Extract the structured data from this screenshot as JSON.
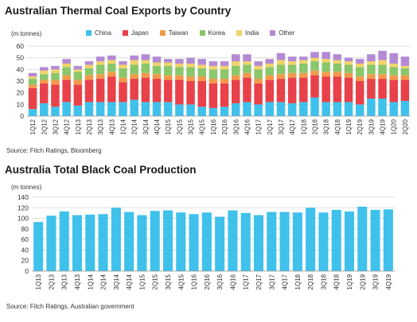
{
  "chart_data": [
    {
      "type": "bar",
      "stacked": true,
      "title": "Australian Thermal Coal Exports by Country",
      "unit_label": "(m tonnes)",
      "source": "Source: Fitch Ratings, Bloomberg",
      "ylim": [
        0,
        60
      ],
      "yticks": [
        0,
        10,
        20,
        30,
        40,
        50,
        60
      ],
      "grid": true,
      "legend_position": "top",
      "categories": [
        "1Q12",
        "2Q12",
        "3Q12",
        "4Q12",
        "1Q13",
        "2Q13",
        "3Q13",
        "4Q13",
        "1Q14",
        "2Q14",
        "3Q14",
        "4Q14",
        "1Q15",
        "2Q15",
        "3Q15",
        "4Q15",
        "1Q16",
        "2Q16",
        "3Q16",
        "4Q16",
        "1Q17",
        "2Q17",
        "3Q17",
        "4Q17",
        "1Q18",
        "2Q18",
        "3Q18",
        "4Q18",
        "1Q19",
        "2Q19",
        "3Q19",
        "4Q19",
        "1Q20",
        "2Q20"
      ],
      "xtick_labels": [
        "1Q12",
        "",
        "3Q12",
        "",
        "1Q13",
        "",
        "3Q13",
        "",
        "1Q14",
        "",
        "3Q14",
        "",
        "1Q15",
        "",
        "3Q15",
        "",
        "1Q16",
        "",
        "3Q16",
        "",
        "1Q17",
        "",
        "3Q17",
        "",
        "1Q18",
        "",
        "3Q18",
        "",
        "1Q19",
        "",
        "3Q19",
        "",
        "1Q20",
        ""
      ],
      "xtick_labels_all": [
        "1Q12",
        "2Q12",
        "3Q12",
        "4Q12",
        "1Q13",
        "2Q13",
        "3Q13",
        "4Q13",
        "1Q14",
        "2Q14",
        "3Q14",
        "4Q14",
        "1Q15",
        "2Q15",
        "3Q15",
        "4Q15",
        "1Q16",
        "2Q16",
        "3Q16",
        "4Q16",
        "1Q17",
        "2Q17",
        "3Q17",
        "4Q17",
        "1Q18",
        "2Q18",
        "3Q18",
        "4Q18",
        "1Q19",
        "2Q19",
        "3Q19",
        "4Q19",
        "1Q20",
        "2Q20"
      ],
      "series": [
        {
          "name": "China",
          "color": "#3fc1ec",
          "values": [
            6,
            11,
            8,
            12,
            9,
            12,
            12,
            12,
            12,
            14,
            12,
            12,
            12,
            10,
            10,
            8,
            7,
            8,
            11,
            12,
            10,
            12,
            12,
            11,
            12,
            16,
            12,
            12,
            12,
            10,
            15,
            15,
            12,
            13
          ]
        },
        {
          "name": "Japan",
          "color": "#e8414a",
          "values": [
            18,
            17,
            19,
            19,
            18,
            19,
            20,
            22,
            17,
            18,
            21,
            20,
            19,
            21,
            20,
            22,
            21,
            20,
            20,
            21,
            18,
            19,
            20,
            22,
            21,
            19,
            22,
            22,
            21,
            20,
            17,
            17,
            19,
            18
          ]
        },
        {
          "name": "Taiwan",
          "color": "#f39a4a",
          "values": [
            3,
            3,
            4,
            4,
            4,
            4,
            4,
            4,
            4,
            4,
            4,
            4,
            4,
            4,
            4,
            4,
            4,
            4,
            4,
            4,
            4,
            4,
            4,
            4,
            4,
            4,
            4,
            4,
            4,
            4,
            4,
            4,
            4,
            4
          ]
        },
        {
          "name": "Korea",
          "color": "#8ac66a",
          "values": [
            5,
            5,
            6,
            7,
            7,
            6,
            8,
            7,
            8,
            8,
            8,
            7,
            8,
            7,
            8,
            7,
            8,
            8,
            8,
            7,
            8,
            7,
            8,
            7,
            8,
            8,
            8,
            7,
            7,
            8,
            8,
            8,
            7,
            6
          ]
        },
        {
          "name": "India",
          "color": "#f0d36a",
          "values": [
            2,
            3,
            3,
            3,
            2,
            3,
            3,
            3,
            3,
            4,
            3,
            3,
            3,
            3,
            3,
            3,
            3,
            3,
            4,
            3,
            3,
            3,
            4,
            3,
            3,
            3,
            3,
            3,
            3,
            3,
            3,
            4,
            3,
            2
          ]
        },
        {
          "name": "Other",
          "color": "#b48ad4",
          "values": [
            3,
            3,
            3,
            4,
            3,
            3,
            4,
            4,
            3,
            4,
            5,
            5,
            3,
            4,
            5,
            5,
            4,
            4,
            6,
            6,
            4,
            4,
            6,
            4,
            3,
            5,
            6,
            5,
            3,
            4,
            6,
            8,
            9,
            8
          ]
        }
      ]
    },
    {
      "type": "bar",
      "title": "Australia Total Black Coal Production",
      "unit_label": "(m tonnes)",
      "source": "Source: Fitch Ratings, Australian government",
      "ylim": [
        0,
        140
      ],
      "yticks": [
        0,
        20,
        40,
        60,
        80,
        100,
        120,
        140
      ],
      "grid": true,
      "color": "#3fc1ec",
      "categories": [
        "1Q13",
        "2Q13",
        "3Q13",
        "4Q13",
        "1Q14",
        "2Q14",
        "3Q14",
        "4Q14",
        "1Q15",
        "2Q15",
        "3Q15",
        "4Q15",
        "1Q16",
        "2Q16",
        "3Q16",
        "4Q16",
        "1Q17",
        "2Q17",
        "3Q17",
        "4Q17",
        "1Q18",
        "2Q18",
        "3Q18",
        "4Q18",
        "1Q19",
        "2Q19",
        "3Q19",
        "4Q19"
      ],
      "xtick_labels": [
        "1Q13",
        "",
        "3Q13",
        "",
        "1Q14",
        "",
        "3Q14",
        "",
        "1Q15",
        "",
        "3Q15",
        "",
        "1Q16",
        "",
        "3Q16",
        "",
        "1Q17",
        "",
        "3Q17",
        "",
        "1Q18",
        "",
        "3Q18",
        "",
        "1Q19",
        "",
        "3Q19",
        ""
      ],
      "xtick_labels_all": [
        "1Q13",
        "2Q13",
        "3Q13",
        "4Q13",
        "1Q14",
        "2Q14",
        "3Q14",
        "4Q14",
        "1Q15",
        "2Q15",
        "3Q15",
        "4Q15",
        "1Q16",
        "2Q16",
        "3Q16",
        "4Q16",
        "1Q17",
        "2Q17",
        "3Q17",
        "4Q17",
        "1Q18",
        "2Q18",
        "3Q18",
        "4Q18",
        "1Q19",
        "2Q19",
        "3Q19",
        "4Q19"
      ],
      "values": [
        93,
        105,
        113,
        106,
        107,
        108,
        120,
        112,
        106,
        114,
        115,
        111,
        108,
        111,
        103,
        115,
        110,
        106,
        112,
        112,
        111,
        120,
        111,
        116,
        113,
        122,
        116,
        117
      ]
    }
  ]
}
